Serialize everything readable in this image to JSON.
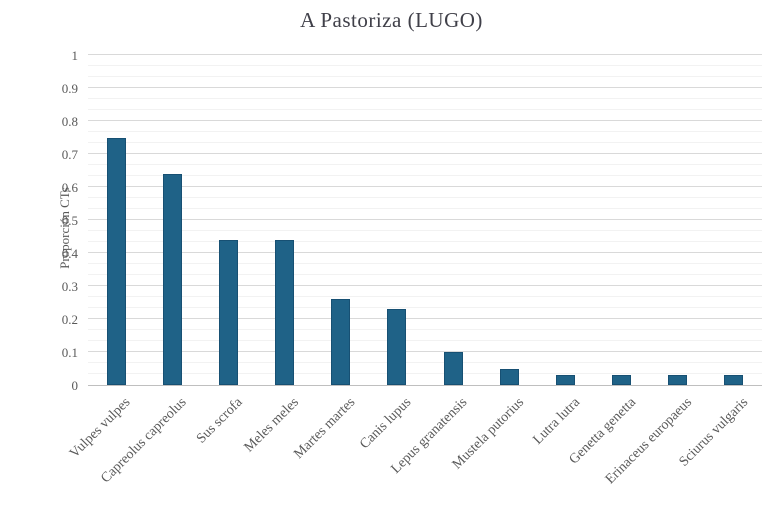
{
  "chart_data": {
    "type": "bar",
    "title": "A Pastoriza (LUGO)",
    "xlabel": "",
    "ylabel": "Proporción CTs",
    "ylim": [
      0,
      1
    ],
    "y_major_tick_labels": [
      "0",
      "0.1",
      "0.2",
      "0.3",
      "0.4",
      "0.5",
      "0.6",
      "0.7",
      "0.8",
      "0.9",
      "1"
    ],
    "minor_gridlines_per_major": 3,
    "grid": true,
    "legend_position": "none",
    "categories": [
      "Vulpes vulpes",
      "Capreolus capreolus",
      "Sus scrofa",
      "Meles meles",
      "Martes martes",
      "Canis lupus",
      "Lepus granatensis",
      "Mustela putorius",
      "Lutra lutra",
      "Genetta genetta",
      "Erinaceus europaeus",
      "Sciurus vulgaris"
    ],
    "values": [
      0.75,
      0.64,
      0.44,
      0.44,
      0.26,
      0.23,
      0.1,
      0.05,
      0.03,
      0.03,
      0.03,
      0.03
    ],
    "colors": {
      "bar_fill": "#1F6287",
      "bar_edge": "#175073",
      "major_gridline": "#D9D9D9",
      "minor_gridline": "#F2F2F2",
      "axis_line": "#BFBFBF",
      "tick_label": "#595959",
      "title": "#404049"
    }
  }
}
